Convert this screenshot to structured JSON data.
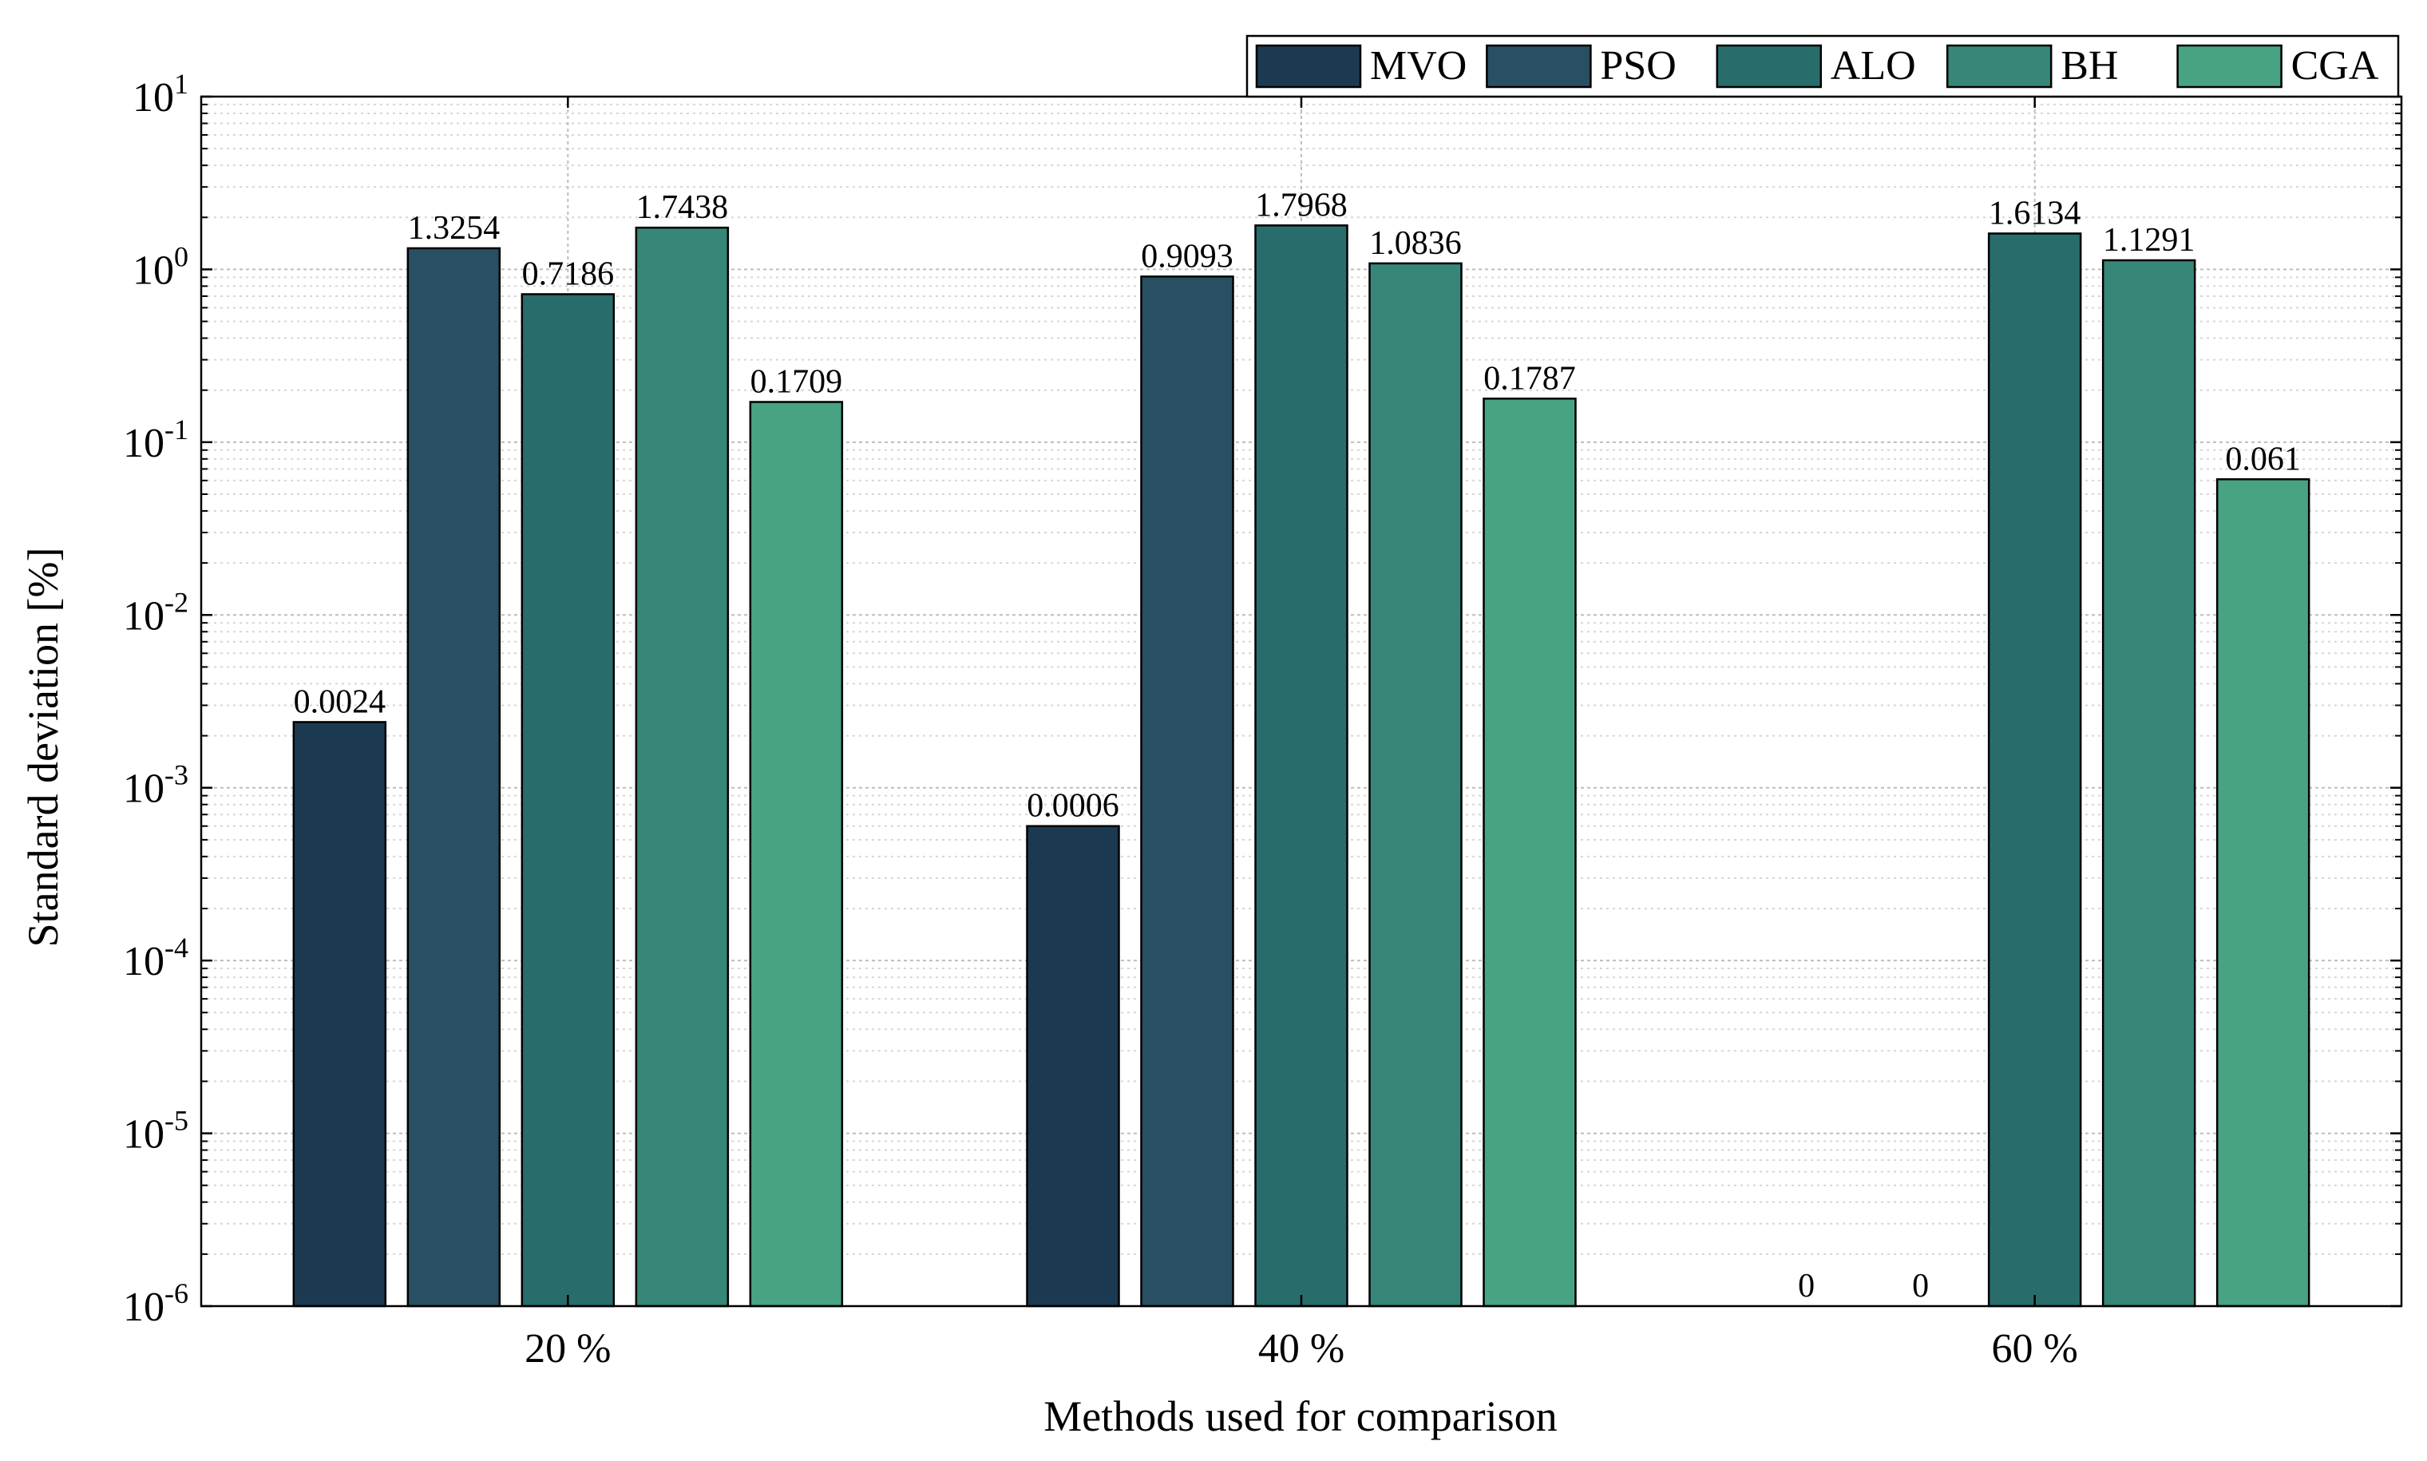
{
  "chart_data": {
    "type": "bar",
    "title": "",
    "xlabel": "Methods used for comparison",
    "ylabel": "Standard deviation [%]",
    "yscale": "log",
    "ylim": [
      1e-06,
      10
    ],
    "grid": true,
    "legend_position": "top-right",
    "categories": [
      "20 %",
      "40 %",
      "60 %"
    ],
    "y_ticks": [
      {
        "base": "10",
        "exp": "1",
        "value": 10
      },
      {
        "base": "10",
        "exp": "0",
        "value": 1
      },
      {
        "base": "10",
        "exp": "-1",
        "value": 0.1
      },
      {
        "base": "10",
        "exp": "-2",
        "value": 0.01
      },
      {
        "base": "10",
        "exp": "-3",
        "value": 0.001
      },
      {
        "base": "10",
        "exp": "-4",
        "value": 0.0001
      },
      {
        "base": "10",
        "exp": "-5",
        "value": 1e-05
      },
      {
        "base": "10",
        "exp": "-6",
        "value": 1e-06
      }
    ],
    "series": [
      {
        "name": "MVO",
        "color": "#1b3a52",
        "values": [
          0.0024,
          0.0006,
          0
        ],
        "labels": [
          "0.0024",
          "0.0006",
          "0"
        ]
      },
      {
        "name": "PSO",
        "color": "#284f62",
        "values": [
          1.3254,
          0.9093,
          0
        ],
        "labels": [
          "1.3254",
          "0.9093",
          "0"
        ]
      },
      {
        "name": "ALO",
        "color": "#286d6c",
        "values": [
          0.7186,
          1.7968,
          1.6134
        ],
        "labels": [
          "0.7186",
          "1.7968",
          "1.6134"
        ]
      },
      {
        "name": "BH",
        "color": "#368777",
        "values": [
          1.7438,
          1.0836,
          1.1291
        ],
        "labels": [
          "1.7438",
          "1.0836",
          "1.1291"
        ]
      },
      {
        "name": "CGA",
        "color": "#48a383",
        "values": [
          0.1709,
          0.1787,
          0.061
        ],
        "labels": [
          "0.1709",
          "0.1787",
          "0.061"
        ]
      }
    ]
  }
}
